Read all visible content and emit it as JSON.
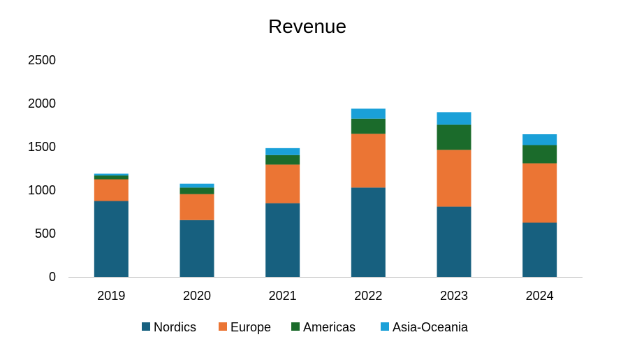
{
  "chart_data": {
    "type": "bar",
    "stacked": true,
    "title": "Revenue",
    "xlabel": "",
    "ylabel": "",
    "ylim": [
      0,
      2500
    ],
    "yticks": [
      0,
      500,
      1000,
      1500,
      2000,
      2500
    ],
    "ytick_labels": [
      "0",
      "500",
      "1000",
      "1500",
      "2000",
      "2500"
    ],
    "categories": [
      "2019",
      "2020",
      "2021",
      "2022",
      "2023",
      "2024"
    ],
    "series": [
      {
        "name": "Nordics",
        "color": "#17607f",
        "values": [
          875,
          655,
          850,
          1030,
          810,
          625
        ]
      },
      {
        "name": "Europe",
        "color": "#eb7534",
        "values": [
          250,
          300,
          445,
          620,
          655,
          685
        ]
      },
      {
        "name": "Americas",
        "color": "#1b6b2b",
        "values": [
          45,
          75,
          110,
          175,
          290,
          210
        ]
      },
      {
        "name": "Asia-Oceania",
        "color": "#1aa0d8",
        "values": [
          20,
          45,
          80,
          115,
          145,
          125
        ]
      }
    ],
    "grid": false,
    "legend_position": "bottom"
  }
}
